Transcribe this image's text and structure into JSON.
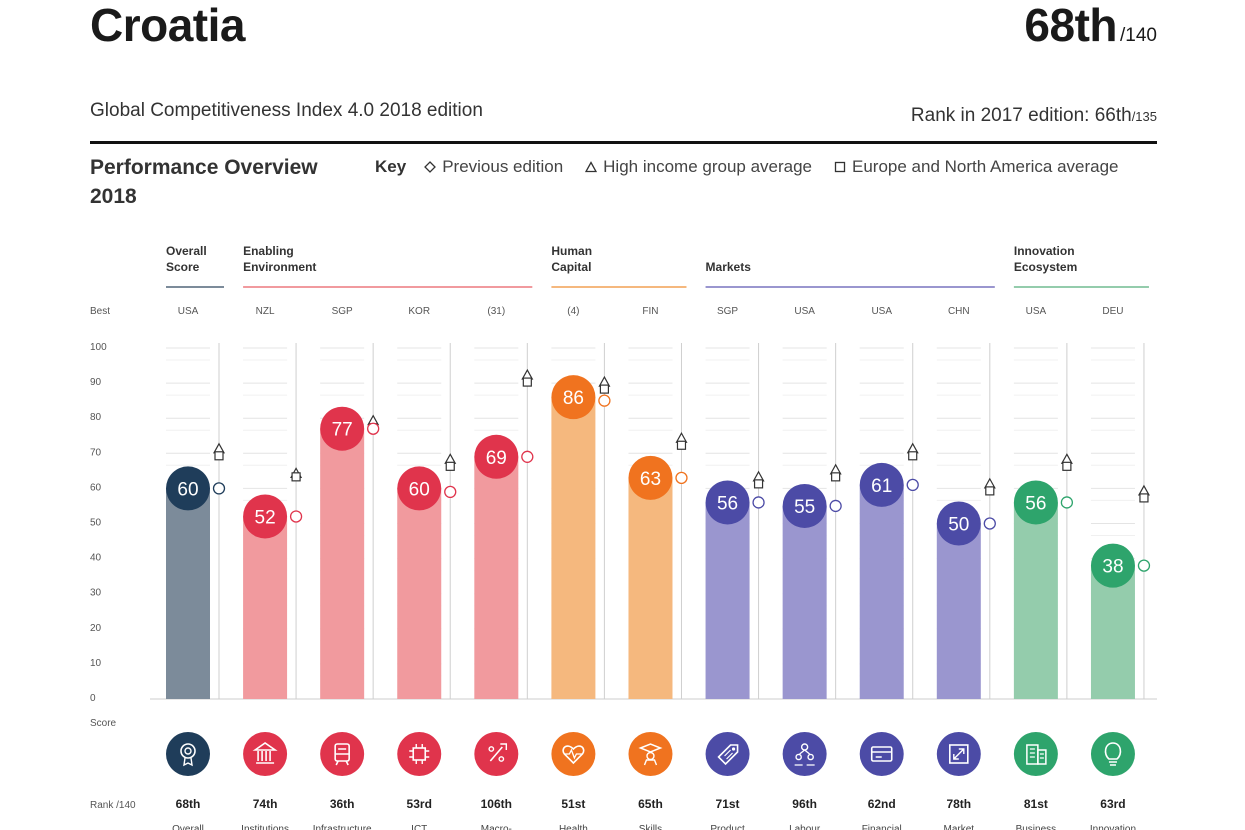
{
  "header": {
    "country": "Croatia",
    "rank": "68th",
    "rank_of": "/140",
    "edition": "Global Competitiveness Index 4.0 2018 edition",
    "prev_rank_label": "Rank in 2017 edition: 66th",
    "prev_rank_of": "/135",
    "performance_title": "Performance Overview",
    "performance_year": "2018"
  },
  "key": {
    "label": "Key",
    "previous": "Previous edition",
    "high_income": "High income group average",
    "europe": "Europe and North America average"
  },
  "colors": {
    "overall": "#7c8b9a",
    "overall_dark": "#1f3d5a",
    "enabling": "#f19a9e",
    "enabling_dark": "#e0344c",
    "human": "#f5b87e",
    "human_dark": "#f0731f",
    "markets": "#9a96cf",
    "markets_dark": "#4c4ba6",
    "innovation": "#94ccac",
    "innovation_dark": "#2ea46c"
  },
  "chart_data": {
    "type": "bar",
    "title": "Performance Overview 2018",
    "ylabel": "Score",
    "ylim": [
      0,
      100
    ],
    "yticks": [
      0,
      10,
      20,
      30,
      40,
      50,
      60,
      70,
      80,
      90,
      100
    ],
    "best_label": "Best",
    "rank_label": "Rank /140",
    "groups": [
      {
        "label_line1": "Overall",
        "label_line2": "Score",
        "color": "#7c8b9a",
        "start": 0,
        "end": 0
      },
      {
        "label_line1": "Enabling",
        "label_line2": "Environment",
        "color": "#f19a9e",
        "start": 1,
        "end": 4
      },
      {
        "label_line1": "Human",
        "label_line2": "Capital",
        "color": "#f5b87e",
        "start": 5,
        "end": 6
      },
      {
        "label_line1": "",
        "label_line2": "Markets",
        "color": "#9a96cf",
        "start": 7,
        "end": 10
      },
      {
        "label_line1": "Innovation",
        "label_line2": "Ecosystem",
        "color": "#94ccac",
        "start": 11,
        "end": 12
      }
    ],
    "pillars": [
      {
        "name": "Overall",
        "best": "USA",
        "value": 60,
        "previous": 60,
        "high_income": 71,
        "europe": 71,
        "rank": "68th",
        "group": 0,
        "icon": "target-icon"
      },
      {
        "name": "Institutions",
        "best": "NZL",
        "value": 52,
        "previous": 52,
        "high_income": 64,
        "europe": 65,
        "rank": "74th",
        "group": 1,
        "icon": "institutions-icon"
      },
      {
        "name": "Infrastructure",
        "best": "SGP",
        "value": 77,
        "previous": 77,
        "high_income": 79,
        "europe": 79,
        "rank": "36th",
        "group": 1,
        "icon": "infrastructure-icon"
      },
      {
        "name": "ICT",
        "best": "KOR",
        "value": 60,
        "previous": 59,
        "high_income": 68,
        "europe": 68,
        "rank": "53rd",
        "group": 1,
        "icon": "chip-icon"
      },
      {
        "name": "Macro-",
        "best": "(31)",
        "value": 69,
        "previous": 69,
        "high_income": 92,
        "europe": 92,
        "rank": "106th",
        "group": 1,
        "icon": "percent-icon"
      },
      {
        "name": "Health",
        "best": "(4)",
        "value": 86,
        "previous": 85,
        "high_income": 90,
        "europe": 90,
        "rank": "51st",
        "group": 2,
        "icon": "heart-icon"
      },
      {
        "name": "Skills",
        "best": "FIN",
        "value": 63,
        "previous": 63,
        "high_income": 74,
        "europe": 74,
        "rank": "65th",
        "group": 2,
        "icon": "graduate-icon"
      },
      {
        "name": "Product",
        "best": "SGP",
        "value": 56,
        "previous": 56,
        "high_income": 63,
        "europe": 63,
        "rank": "71st",
        "group": 3,
        "icon": "tag-icon"
      },
      {
        "name": "Labour",
        "best": "USA",
        "value": 55,
        "previous": 55,
        "high_income": 65,
        "europe": 65,
        "rank": "96th",
        "group": 3,
        "icon": "people-icon"
      },
      {
        "name": "Financial",
        "best": "USA",
        "value": 61,
        "previous": 61,
        "high_income": 71,
        "europe": 71,
        "rank": "62nd",
        "group": 3,
        "icon": "card-icon"
      },
      {
        "name": "Market",
        "best": "CHN",
        "value": 50,
        "previous": 50,
        "high_income": 61,
        "europe": 61,
        "rank": "78th",
        "group": 3,
        "icon": "expand-icon"
      },
      {
        "name": "Business",
        "best": "USA",
        "value": 56,
        "previous": 56,
        "high_income": 68,
        "europe": 68,
        "rank": "81st",
        "group": 4,
        "icon": "building-icon"
      },
      {
        "name": "Innovation",
        "best": "DEU",
        "value": 38,
        "previous": 38,
        "high_income": 59,
        "europe": 59,
        "rank": "63rd",
        "group": 4,
        "icon": "bulb-icon"
      }
    ]
  }
}
